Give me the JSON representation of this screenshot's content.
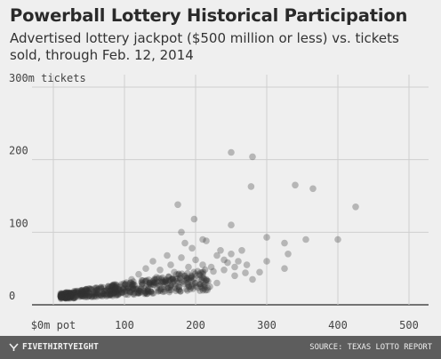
{
  "title": "Powerball Lottery Historical Participation",
  "subtitle": "Advertised lottery jackpot ($500 million or less) vs. tickets sold, through Feb. 12, 2014",
  "footer": {
    "brand": "FIVETHIRTYEIGHT",
    "brand_icon": "fivethirtyeight-logo-icon",
    "source": "SOURCE: TEXAS LOTTO REPORT"
  },
  "chart_data": {
    "type": "scatter",
    "title": "Powerball Lottery Historical Participation",
    "subtitle": "Advertised lottery jackpot ($500 million or less) vs. tickets sold, through Feb. 12, 2014",
    "xlabel": "",
    "ylabel": "",
    "xlim": [
      0,
      500
    ],
    "ylim": [
      0,
      300
    ],
    "x_ticks": [
      0,
      100,
      200,
      300,
      400,
      500
    ],
    "x_tick_labels": [
      "$0m pot",
      "100",
      "200",
      "300",
      "400",
      "500"
    ],
    "y_ticks": [
      0,
      100,
      200,
      300
    ],
    "y_tick_labels": [
      "0",
      "100",
      "200",
      "300m tickets"
    ],
    "grid": true,
    "colors": {
      "background": "#efefef",
      "grid": "#cfcfcf",
      "point": "#333333"
    },
    "points": [
      [
        250,
        210
      ],
      [
        280,
        204
      ],
      [
        278,
        163
      ],
      [
        340,
        165
      ],
      [
        365,
        160
      ],
      [
        425,
        135
      ],
      [
        175,
        138
      ],
      [
        198,
        118
      ],
      [
        180,
        100
      ],
      [
        250,
        110
      ],
      [
        300,
        93
      ],
      [
        325,
        85
      ],
      [
        355,
        90
      ],
      [
        400,
        90
      ],
      [
        330,
        70
      ],
      [
        300,
        60
      ],
      [
        325,
        50
      ],
      [
        280,
        35
      ],
      [
        230,
        30
      ],
      [
        255,
        40
      ],
      [
        272,
        55
      ],
      [
        240,
        62
      ],
      [
        222,
        52
      ],
      [
        250,
        70
      ],
      [
        265,
        75
      ],
      [
        210,
        90
      ],
      [
        215,
        88
      ],
      [
        230,
        68
      ],
      [
        200,
        62
      ],
      [
        195,
        78
      ],
      [
        180,
        65
      ],
      [
        190,
        52
      ],
      [
        160,
        68
      ],
      [
        165,
        55
      ],
      [
        140,
        60
      ],
      [
        150,
        48
      ],
      [
        170,
        45
      ],
      [
        185,
        40
      ],
      [
        205,
        42
      ],
      [
        215,
        35
      ],
      [
        225,
        46
      ],
      [
        240,
        48
      ],
      [
        255,
        52
      ],
      [
        270,
        44
      ],
      [
        245,
        58
      ],
      [
        200,
        30
      ],
      [
        160,
        30
      ],
      [
        130,
        50
      ],
      [
        145,
        38
      ],
      [
        120,
        42
      ],
      [
        110,
        35
      ],
      [
        125,
        30
      ],
      [
        138,
        28
      ],
      [
        150,
        32
      ],
      [
        175,
        30
      ],
      [
        210,
        55
      ],
      [
        260,
        60
      ],
      [
        290,
        45
      ],
      [
        235,
        75
      ],
      [
        185,
        85
      ],
      [
        220,
        25
      ],
      [
        195,
        26
      ],
      [
        178,
        35
      ]
    ],
    "dense_cluster": {
      "description": "several hundred drawings densely clustered along a rising band",
      "x_range": [
        10,
        220
      ],
      "y_at_x_start": [
        8,
        16
      ],
      "y_at_x_end": [
        20,
        50
      ]
    }
  }
}
